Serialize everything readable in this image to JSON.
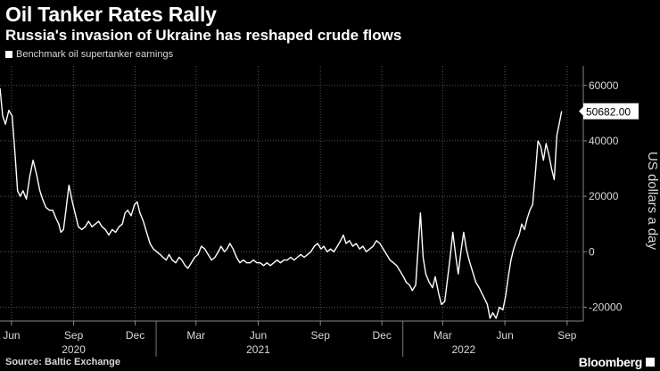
{
  "header": {
    "title": "Oil Tanker Rates Rally",
    "subtitle": "Russia's invasion of Ukraine has reshaped crude flows"
  },
  "footer": {
    "source": "Source: Baltic Exchange",
    "brand": "Bloomberg"
  },
  "colors": {
    "background": "#000000",
    "line": "#ffffff",
    "grid": "#555555",
    "text": "#d8d8d8"
  },
  "chart_data": {
    "type": "line",
    "title": "Oil Tanker Rates Rally",
    "subtitle": "Russia's invasion of Ukraine has reshaped crude flows",
    "ylabel": "US dollars a day",
    "xlabel": "",
    "ylim": [
      -25000,
      67000
    ],
    "xlim": [
      "2020-05-15",
      "2022-09-25"
    ],
    "yticks": [
      -20000,
      0,
      20000,
      40000,
      60000
    ],
    "ytick_labels": [
      "-20000",
      "0",
      "20000",
      "40000",
      "60000"
    ],
    "xticks": [
      {
        "date": "2020-06-01",
        "label": "Jun"
      },
      {
        "date": "2020-09-01",
        "label": "Sep"
      },
      {
        "date": "2020-12-01",
        "label": "Dec"
      },
      {
        "date": "2021-03-01",
        "label": "Mar"
      },
      {
        "date": "2021-06-01",
        "label": "Jun"
      },
      {
        "date": "2021-09-01",
        "label": "Sep"
      },
      {
        "date": "2021-12-01",
        "label": "Dec"
      },
      {
        "date": "2022-03-01",
        "label": "Mar"
      },
      {
        "date": "2022-06-01",
        "label": "Jun"
      },
      {
        "date": "2022-09-01",
        "label": "Sep"
      }
    ],
    "year_labels": [
      {
        "date": "2020-09-01",
        "label": "2020"
      },
      {
        "date": "2021-06-01",
        "label": "2021"
      },
      {
        "date": "2022-04-01",
        "label": "2022"
      }
    ],
    "grid": true,
    "last_value_label": "50682.00",
    "series": [
      {
        "name": "Benchmark oil supertanker earnings",
        "points": [
          [
            "2020-05-15",
            59000
          ],
          [
            "2020-05-19",
            49000
          ],
          [
            "2020-05-23",
            46000
          ],
          [
            "2020-05-28",
            51000
          ],
          [
            "2020-06-02",
            49000
          ],
          [
            "2020-06-06",
            36000
          ],
          [
            "2020-06-10",
            22000
          ],
          [
            "2020-06-14",
            20000
          ],
          [
            "2020-06-18",
            22000
          ],
          [
            "2020-06-23",
            19000
          ],
          [
            "2020-06-28",
            27000
          ],
          [
            "2020-07-03",
            33000
          ],
          [
            "2020-07-08",
            28000
          ],
          [
            "2020-07-13",
            22000
          ],
          [
            "2020-07-17",
            19000
          ],
          [
            "2020-07-22",
            16000
          ],
          [
            "2020-07-27",
            15000
          ],
          [
            "2020-08-01",
            15000
          ],
          [
            "2020-08-06",
            12000
          ],
          [
            "2020-08-10",
            10000
          ],
          [
            "2020-08-13",
            7000
          ],
          [
            "2020-08-17",
            8000
          ],
          [
            "2020-08-21",
            16000
          ],
          [
            "2020-08-25",
            24000
          ],
          [
            "2020-08-30",
            18000
          ],
          [
            "2020-09-04",
            13000
          ],
          [
            "2020-09-08",
            9000
          ],
          [
            "2020-09-13",
            8000
          ],
          [
            "2020-09-18",
            9000
          ],
          [
            "2020-09-23",
            11000
          ],
          [
            "2020-09-28",
            9000
          ],
          [
            "2020-10-03",
            10000
          ],
          [
            "2020-10-08",
            11000
          ],
          [
            "2020-10-13",
            9000
          ],
          [
            "2020-10-18",
            8000
          ],
          [
            "2020-10-23",
            6000
          ],
          [
            "2020-10-28",
            8000
          ],
          [
            "2020-11-02",
            7000
          ],
          [
            "2020-11-07",
            9000
          ],
          [
            "2020-11-12",
            10000
          ],
          [
            "2020-11-16",
            14000
          ],
          [
            "2020-11-20",
            15000
          ],
          [
            "2020-11-25",
            13000
          ],
          [
            "2020-11-30",
            17000
          ],
          [
            "2020-12-04",
            18000
          ],
          [
            "2020-12-08",
            14000
          ],
          [
            "2020-12-13",
            11000
          ],
          [
            "2020-12-18",
            7000
          ],
          [
            "2020-12-23",
            3000
          ],
          [
            "2020-12-28",
            1000
          ],
          [
            "2021-01-02",
            0
          ],
          [
            "2021-01-07",
            -1000
          ],
          [
            "2021-01-11",
            -2000
          ],
          [
            "2021-01-16",
            -3000
          ],
          [
            "2021-01-20",
            -1000
          ],
          [
            "2021-01-25",
            -3000
          ],
          [
            "2021-01-30",
            -4000
          ],
          [
            "2021-02-04",
            -2000
          ],
          [
            "2021-02-08",
            -3000
          ],
          [
            "2021-02-13",
            -5000
          ],
          [
            "2021-02-17",
            -6000
          ],
          [
            "2021-02-22",
            -4000
          ],
          [
            "2021-02-27",
            -2000
          ],
          [
            "2021-03-04",
            -1000
          ],
          [
            "2021-03-09",
            2000
          ],
          [
            "2021-03-14",
            1000
          ],
          [
            "2021-03-19",
            -1000
          ],
          [
            "2021-03-24",
            -3000
          ],
          [
            "2021-03-29",
            -2000
          ],
          [
            "2021-04-03",
            0
          ],
          [
            "2021-04-07",
            2000
          ],
          [
            "2021-04-12",
            0
          ],
          [
            "2021-04-16",
            1000
          ],
          [
            "2021-04-20",
            3000
          ],
          [
            "2021-04-25",
            1000
          ],
          [
            "2021-04-30",
            -2000
          ],
          [
            "2021-05-05",
            -4000
          ],
          [
            "2021-05-10",
            -3000
          ],
          [
            "2021-05-15",
            -4000
          ],
          [
            "2021-05-20",
            -4000
          ],
          [
            "2021-05-25",
            -3000
          ],
          [
            "2021-05-30",
            -4000
          ],
          [
            "2021-06-04",
            -4000
          ],
          [
            "2021-06-09",
            -5000
          ],
          [
            "2021-06-14",
            -4000
          ],
          [
            "2021-06-19",
            -5000
          ],
          [
            "2021-06-24",
            -4000
          ],
          [
            "2021-06-29",
            -3000
          ],
          [
            "2021-07-04",
            -4000
          ],
          [
            "2021-07-09",
            -3000
          ],
          [
            "2021-07-14",
            -3000
          ],
          [
            "2021-07-19",
            -2000
          ],
          [
            "2021-07-24",
            -3000
          ],
          [
            "2021-07-29",
            -2000
          ],
          [
            "2021-08-03",
            -1000
          ],
          [
            "2021-08-08",
            -2000
          ],
          [
            "2021-08-13",
            -1000
          ],
          [
            "2021-08-18",
            0
          ],
          [
            "2021-08-23",
            2000
          ],
          [
            "2021-08-28",
            3000
          ],
          [
            "2021-09-02",
            1000
          ],
          [
            "2021-09-06",
            2000
          ],
          [
            "2021-09-11",
            0
          ],
          [
            "2021-09-16",
            1000
          ],
          [
            "2021-09-21",
            0
          ],
          [
            "2021-09-26",
            2000
          ],
          [
            "2021-10-01",
            4000
          ],
          [
            "2021-10-05",
            6000
          ],
          [
            "2021-10-09",
            3000
          ],
          [
            "2021-10-14",
            4000
          ],
          [
            "2021-10-19",
            2000
          ],
          [
            "2021-10-24",
            3000
          ],
          [
            "2021-10-29",
            1000
          ],
          [
            "2021-11-03",
            2000
          ],
          [
            "2021-11-08",
            0
          ],
          [
            "2021-11-13",
            1000
          ],
          [
            "2021-11-18",
            2000
          ],
          [
            "2021-11-23",
            4000
          ],
          [
            "2021-11-28",
            3000
          ],
          [
            "2021-12-03",
            1000
          ],
          [
            "2021-12-08",
            -1000
          ],
          [
            "2021-12-13",
            -3000
          ],
          [
            "2021-12-18",
            -4000
          ],
          [
            "2021-12-23",
            -5000
          ],
          [
            "2021-12-28",
            -7000
          ],
          [
            "2022-01-02",
            -9000
          ],
          [
            "2022-01-06",
            -11000
          ],
          [
            "2022-01-11",
            -12000
          ],
          [
            "2022-01-15",
            -14000
          ],
          [
            "2022-01-20",
            -12000
          ],
          [
            "2022-01-24",
            3000
          ],
          [
            "2022-01-27",
            14000
          ],
          [
            "2022-01-31",
            -2000
          ],
          [
            "2022-02-04",
            -8000
          ],
          [
            "2022-02-09",
            -11000
          ],
          [
            "2022-02-14",
            -13000
          ],
          [
            "2022-02-18",
            -9000
          ],
          [
            "2022-02-23",
            -15000
          ],
          [
            "2022-02-27",
            -19000
          ],
          [
            "2022-03-04",
            -18000
          ],
          [
            "2022-03-08",
            -10000
          ],
          [
            "2022-03-12",
            -2000
          ],
          [
            "2022-03-16",
            7000
          ],
          [
            "2022-03-20",
            -1000
          ],
          [
            "2022-03-24",
            -8000
          ],
          [
            "2022-03-28",
            0
          ],
          [
            "2022-04-01",
            7000
          ],
          [
            "2022-04-05",
            1000
          ],
          [
            "2022-04-09",
            -3000
          ],
          [
            "2022-04-14",
            -7000
          ],
          [
            "2022-04-19",
            -11000
          ],
          [
            "2022-04-24",
            -13000
          ],
          [
            "2022-04-28",
            -15000
          ],
          [
            "2022-05-02",
            -17000
          ],
          [
            "2022-05-06",
            -19000
          ],
          [
            "2022-05-10",
            -24000
          ],
          [
            "2022-05-14",
            -22000
          ],
          [
            "2022-05-19",
            -24000
          ],
          [
            "2022-05-24",
            -20000
          ],
          [
            "2022-05-29",
            -21000
          ],
          [
            "2022-06-02",
            -16000
          ],
          [
            "2022-06-06",
            -9000
          ],
          [
            "2022-06-10",
            -3000
          ],
          [
            "2022-06-14",
            1000
          ],
          [
            "2022-06-18",
            4000
          ],
          [
            "2022-06-22",
            6000
          ],
          [
            "2022-06-26",
            10000
          ],
          [
            "2022-06-30",
            8000
          ],
          [
            "2022-07-04",
            12000
          ],
          [
            "2022-07-08",
            15000
          ],
          [
            "2022-07-12",
            17000
          ],
          [
            "2022-07-16",
            28000
          ],
          [
            "2022-07-20",
            40000
          ],
          [
            "2022-07-24",
            38000
          ],
          [
            "2022-07-28",
            33000
          ],
          [
            "2022-08-01",
            39000
          ],
          [
            "2022-08-05",
            35000
          ],
          [
            "2022-08-09",
            30000
          ],
          [
            "2022-08-13",
            26000
          ],
          [
            "2022-08-17",
            42000
          ],
          [
            "2022-08-21",
            47000
          ],
          [
            "2022-08-24",
            50682
          ]
        ]
      }
    ]
  }
}
